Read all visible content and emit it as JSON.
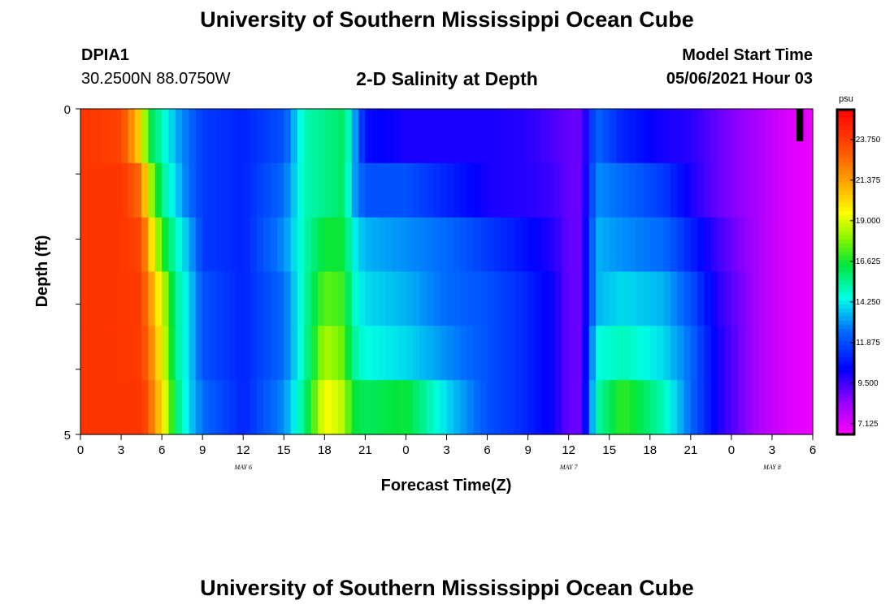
{
  "page": {
    "title_top": "University of Southern Mississippi Ocean Cube",
    "title_bottom": "University of Southern Mississippi Ocean Cube",
    "station": "DPIA1",
    "coords": "30.2500N  88.0750W",
    "subtitle": "2-D Salinity at Depth",
    "model_start_label": "Model Start Time",
    "model_start_value": "05/06/2021 Hour 03"
  },
  "chart_data": {
    "type": "heatmap",
    "title": "2-D Salinity at Depth",
    "xlabel": "Forecast Time(Z)",
    "ylabel": "Depth (ft)",
    "x_range_hours": [
      0,
      54
    ],
    "y_range": [
      0,
      5
    ],
    "x_tick_labels": [
      "0",
      "3",
      "6",
      "9",
      "12",
      "15",
      "18",
      "21",
      "0",
      "3",
      "6",
      "9",
      "12",
      "15",
      "18",
      "21",
      "0",
      "3",
      "6"
    ],
    "y_tick_labels": [
      "0",
      "5"
    ],
    "day_labels": [
      {
        "text": "MAY 6",
        "hour": 12
      },
      {
        "text": "MAY 7",
        "hour": 36
      },
      {
        "text": "MAY 8",
        "hour": 51
      }
    ],
    "colorbar": {
      "unit": "psu",
      "min": 6.5,
      "max": 25.5,
      "tick_labels": [
        "23.750",
        "21.375",
        "19.000",
        "16.625",
        "14.250",
        "11.875",
        "9.500",
        "7.125"
      ],
      "tick_values": [
        23.75,
        21.375,
        19.0,
        16.625,
        14.25,
        11.875,
        9.5,
        7.125
      ]
    },
    "depth_levels_ft": [
      0,
      1,
      2,
      3,
      4,
      5
    ],
    "time_keyframes_hours": [
      0,
      3,
      4.5,
      5,
      6,
      7,
      8,
      9,
      12,
      15,
      16.5,
      18,
      19.5,
      20,
      21,
      24,
      27,
      30,
      33,
      35,
      36,
      37,
      38,
      40,
      43,
      45,
      47,
      50,
      52,
      54
    ],
    "salinity_psu": [
      [
        24.0,
        23.6,
        20.0,
        16.5,
        15.0,
        13.5,
        12.5,
        11.5,
        11.0,
        12.0,
        15.0,
        15.5,
        16.0,
        14.0,
        10.5,
        10.0,
        10.0,
        10.0,
        9.8,
        9.3,
        9.0,
        9.0,
        12.5,
        11.0,
        10.0,
        9.8,
        9.0,
        8.0,
        7.2,
        6.8
      ],
      [
        24.0,
        24.0,
        22.5,
        19.0,
        15.5,
        14.0,
        12.5,
        11.5,
        11.0,
        12.5,
        15.0,
        15.5,
        16.0,
        13.5,
        12.0,
        12.0,
        11.0,
        10.0,
        9.8,
        9.5,
        9.0,
        9.0,
        13.0,
        12.5,
        11.5,
        10.0,
        9.0,
        8.0,
        7.2,
        6.8
      ],
      [
        24.0,
        24.0,
        23.5,
        21.0,
        17.0,
        15.0,
        13.5,
        11.5,
        11.0,
        13.0,
        15.0,
        16.5,
        16.5,
        14.5,
        13.5,
        13.0,
        12.5,
        11.5,
        10.5,
        9.8,
        9.0,
        9.0,
        13.5,
        13.0,
        12.5,
        11.0,
        9.5,
        8.0,
        7.2,
        6.8
      ],
      [
        24.0,
        24.0,
        23.8,
        22.0,
        19.0,
        15.5,
        14.0,
        12.0,
        11.0,
        12.5,
        15.0,
        17.5,
        17.0,
        15.0,
        14.0,
        13.5,
        12.5,
        12.0,
        11.0,
        10.0,
        9.0,
        9.0,
        13.5,
        14.0,
        13.5,
        12.0,
        9.8,
        8.0,
        7.2,
        6.8
      ],
      [
        24.0,
        24.0,
        23.8,
        22.5,
        19.5,
        15.5,
        14.0,
        12.0,
        11.0,
        12.5,
        15.0,
        18.5,
        17.5,
        15.5,
        14.5,
        14.0,
        13.0,
        12.0,
        11.0,
        10.0,
        9.0,
        9.0,
        14.5,
        15.0,
        14.0,
        12.5,
        10.0,
        8.0,
        7.2,
        6.8
      ],
      [
        24.0,
        24.0,
        24.0,
        23.0,
        20.0,
        16.0,
        14.0,
        12.5,
        11.0,
        13.0,
        15.5,
        19.5,
        18.5,
        16.5,
        16.0,
        16.5,
        14.0,
        12.0,
        11.0,
        10.0,
        9.0,
        9.0,
        15.0,
        17.0,
        15.0,
        12.5,
        10.0,
        8.0,
        7.2,
        6.8
      ]
    ],
    "data_gap_marker": {
      "start_hour": 52.8,
      "end_hour": 53.3,
      "depth_from": 0,
      "depth_to": 0.5
    }
  }
}
